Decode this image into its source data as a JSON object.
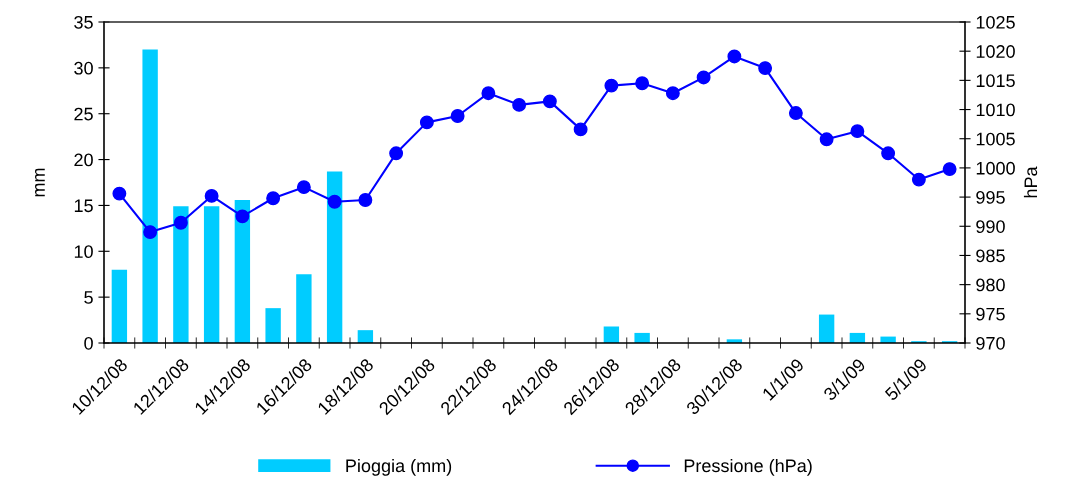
{
  "chart_data": {
    "type": "bar",
    "categories": [
      "10/12/08",
      null,
      "12/12/08",
      null,
      "14/12/08",
      null,
      "16/12/08",
      null,
      "18/12/08",
      null,
      "20/12/08",
      null,
      "22/12/08",
      null,
      "24/12/08",
      null,
      "26/12/08",
      null,
      "28/12/08",
      null,
      "30/12/08",
      null,
      "1/1/09",
      null,
      "3/1/09",
      null,
      "5/1/09",
      null
    ],
    "series": [
      {
        "name": "Pioggia (mm)",
        "color": "#00ccff",
        "values": [
          8.0,
          32.0,
          14.9,
          14.9,
          15.6,
          3.8,
          7.5,
          18.7,
          1.4,
          0,
          0,
          0,
          0,
          0,
          0,
          0,
          1.8,
          1.1,
          0,
          0,
          0.4,
          0,
          0,
          3.1,
          1.1,
          0.7,
          0.2,
          0.2
        ]
      },
      {
        "name": "Pressione (hPa)",
        "type": "line",
        "axis": "y2",
        "color": "#0000ff",
        "marker": "circle",
        "values": [
          995.6,
          989.0,
          990.6,
          995.2,
          991.7,
          994.8,
          996.7,
          994.2,
          994.5,
          1002.5,
          1007.8,
          1008.9,
          1012.8,
          1010.8,
          1011.4,
          1006.6,
          1014.1,
          1014.5,
          1012.8,
          1015.5,
          1019.1,
          1017.1,
          1009.4,
          1004.9,
          1006.3,
          1002.5,
          998.0,
          999.8
        ]
      }
    ],
    "ylabel": "mm",
    "y2label": "hPa",
    "ylim": [
      0,
      35
    ],
    "yticks": [
      0,
      5,
      10,
      15,
      20,
      25,
      30,
      35
    ],
    "y2lim": [
      970,
      1025
    ],
    "y2ticks": [
      970,
      975,
      980,
      985,
      990,
      995,
      1000,
      1005,
      1010,
      1015,
      1020,
      1025
    ],
    "grid": false,
    "legend": "bottom"
  }
}
